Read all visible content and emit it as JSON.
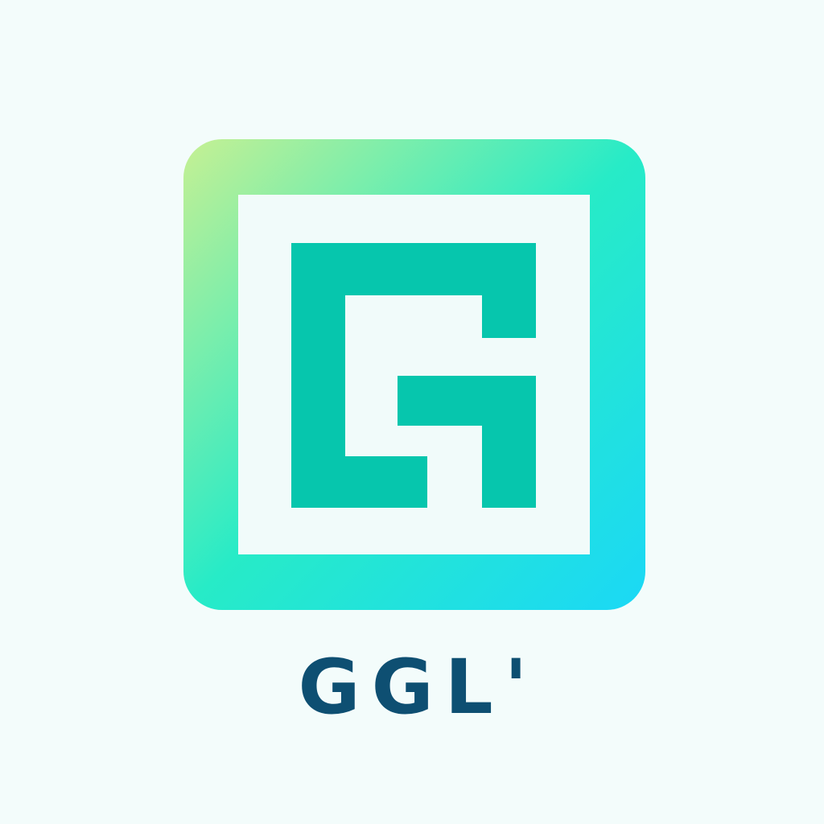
{
  "logo": {
    "wordmark": "GGL'",
    "colors": {
      "background": "#f3fcfb",
      "frame_gradient_start": "#c6f093",
      "frame_gradient_mid": "#27ebc7",
      "frame_gradient_end": "#1bd8f6",
      "inner_panel": "#f1fbfa",
      "glyph": "#06c6ad",
      "wordmark": "#0e4f72"
    },
    "icon_name": "stylized-g-square-icon"
  }
}
